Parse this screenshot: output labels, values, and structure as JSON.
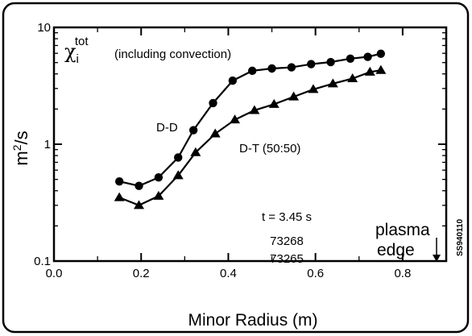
{
  "chart_data": {
    "type": "line",
    "title": "",
    "xlabel": "Minor Radius  (m)",
    "ylabel": "m2/s",
    "ylabel_base": "m",
    "ylabel_sup": "2",
    "ylabel_unit": "/s",
    "xlim": [
      0.0,
      0.9
    ],
    "ylim": [
      0.1,
      10
    ],
    "y_scale": "log",
    "grid": false,
    "x_ticks": [
      "0.0",
      "0.2",
      "0.4",
      "0.6",
      "0.8"
    ],
    "x_tick_values": [
      0.0,
      0.2,
      0.4,
      0.6,
      0.8
    ],
    "y_ticks": [
      "0.1",
      "1",
      "10"
    ],
    "y_tick_values": [
      0.1,
      1,
      10
    ],
    "series": [
      {
        "name": "D-D",
        "marker": "circle",
        "color": "#000000",
        "x": [
          0.15,
          0.195,
          0.24,
          0.285,
          0.32,
          0.365,
          0.41,
          0.455,
          0.5,
          0.545,
          0.59,
          0.635,
          0.68,
          0.72,
          0.75
        ],
        "y": [
          0.48,
          0.44,
          0.52,
          0.77,
          1.32,
          2.25,
          3.5,
          4.25,
          4.45,
          4.55,
          4.85,
          5.05,
          5.4,
          5.6,
          5.95
        ]
      },
      {
        "name": "D-T (50:50)",
        "marker": "triangle",
        "color": "#000000",
        "x": [
          0.15,
          0.195,
          0.24,
          0.285,
          0.325,
          0.37,
          0.415,
          0.46,
          0.505,
          0.55,
          0.595,
          0.64,
          0.685,
          0.725,
          0.75
        ],
        "y": [
          0.35,
          0.3,
          0.36,
          0.54,
          0.85,
          1.23,
          1.62,
          1.95,
          2.2,
          2.55,
          2.95,
          3.3,
          3.65,
          4.15,
          4.3
        ]
      }
    ],
    "annotations": {
      "quantity": "χ",
      "quantity_sub": "i",
      "quantity_sup": "tot",
      "note": "(including convection)",
      "time": "t = 3.45 s",
      "shot1": "73268",
      "shot2": "73265",
      "edge_line1": "plasma",
      "edge_line2": "edge",
      "edge_arrow": "↓",
      "figure_id": "SS940110"
    }
  }
}
